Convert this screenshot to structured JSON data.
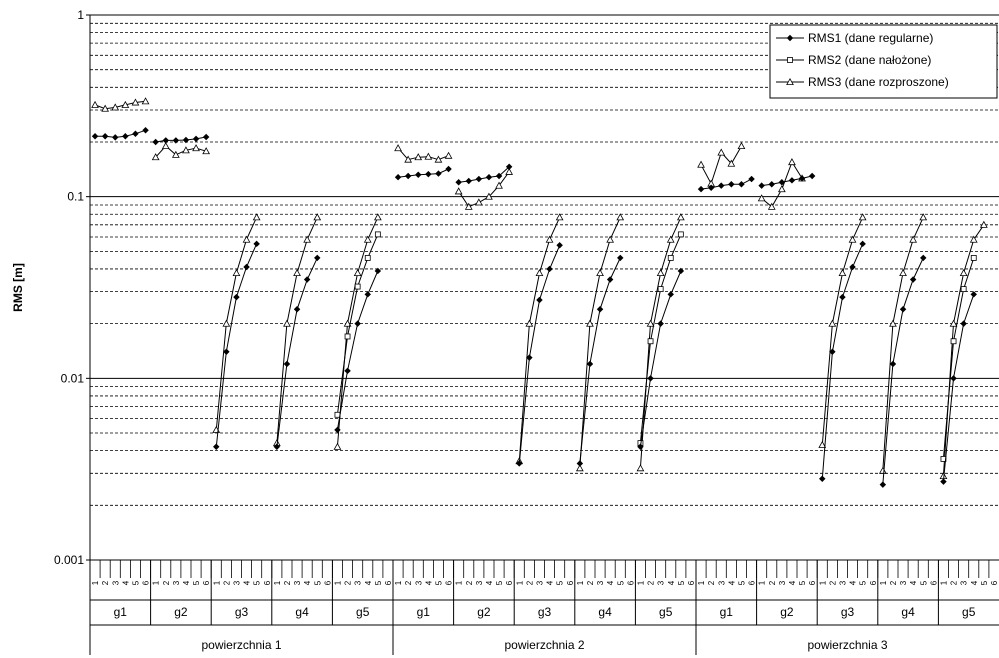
{
  "chart_data": {
    "type": "line",
    "title": "",
    "ylabel": "RMS [m]",
    "xlabel": "",
    "y_scale": "log",
    "ylim": [
      0.001,
      1
    ],
    "y_tick_labels": [
      "0.001",
      "0.01",
      "0.1",
      "1"
    ],
    "grid": {
      "major": "solid",
      "minor": "dashed"
    },
    "legend_position": "top-right",
    "colors": {
      "line": "#000000",
      "grid_major": "#000000",
      "grid_minor": "#000000",
      "background": "#ffffff"
    },
    "groups": [
      {
        "label": "powierzchnia 1",
        "subgroups": [
          "g1",
          "g2",
          "g3",
          "g4",
          "g5"
        ]
      },
      {
        "label": "powierzchnia 2",
        "subgroups": [
          "g1",
          "g2",
          "g3",
          "g4",
          "g5"
        ]
      },
      {
        "label": "powierzchnia 3",
        "subgroups": [
          "g1",
          "g2",
          "g3",
          "g4",
          "g5"
        ]
      }
    ],
    "sub_categories": [
      "1",
      "2",
      "3",
      "4",
      "5",
      "6"
    ],
    "series": [
      {
        "name": "RMS1 (dane regularne)",
        "marker": "diamond-filled",
        "values": [
          [
            [
              0.215,
              0.215,
              0.212,
              0.215,
              0.222,
              0.232
            ],
            [
              0.2,
              0.204,
              0.204,
              0.205,
              0.208,
              0.213
            ],
            [
              0.0042,
              0.014,
              0.028,
              0.041,
              0.055,
              null
            ],
            [
              0.0042,
              0.012,
              0.024,
              0.035,
              0.046,
              null
            ],
            [
              0.0052,
              0.011,
              0.02,
              0.029,
              0.039,
              null
            ]
          ],
          [
            [
              0.128,
              0.13,
              0.132,
              0.133,
              0.134,
              0.142
            ],
            [
              0.12,
              0.122,
              0.125,
              0.128,
              0.13,
              0.146
            ],
            [
              0.0034,
              0.013,
              0.027,
              0.04,
              0.054,
              null
            ],
            [
              0.0034,
              0.012,
              0.024,
              0.035,
              0.046,
              null
            ],
            [
              0.0042,
              0.01,
              0.02,
              0.029,
              0.039,
              null
            ]
          ],
          [
            [
              0.11,
              0.112,
              0.115,
              0.117,
              0.117,
              0.125
            ],
            [
              0.115,
              0.117,
              0.12,
              0.123,
              0.126,
              0.13
            ],
            [
              0.0028,
              0.014,
              0.028,
              0.041,
              0.055,
              null
            ],
            [
              0.0026,
              0.012,
              0.024,
              0.035,
              0.046,
              null
            ],
            [
              0.0027,
              0.01,
              0.02,
              0.029,
              null,
              null
            ]
          ]
        ]
      },
      {
        "name": "RMS2 (dane nałożone)",
        "marker": "square-open",
        "values": [
          [
            [
              null,
              null,
              null,
              null,
              null,
              null
            ],
            [
              null,
              null,
              null,
              null,
              null,
              null
            ],
            [
              null,
              null,
              null,
              null,
              null,
              null
            ],
            [
              null,
              null,
              null,
              null,
              null,
              null
            ],
            [
              0.0063,
              0.017,
              0.032,
              0.046,
              0.062,
              null
            ]
          ],
          [
            [
              null,
              null,
              null,
              null,
              null,
              null
            ],
            [
              null,
              null,
              null,
              null,
              null,
              null
            ],
            [
              null,
              null,
              null,
              null,
              null,
              null
            ],
            [
              null,
              null,
              null,
              null,
              null,
              null
            ],
            [
              0.0044,
              0.016,
              0.031,
              0.046,
              0.062,
              null
            ]
          ],
          [
            [
              null,
              null,
              null,
              null,
              null,
              null
            ],
            [
              null,
              null,
              null,
              null,
              null,
              null
            ],
            [
              null,
              null,
              null,
              null,
              null,
              null
            ],
            [
              null,
              null,
              null,
              null,
              null,
              null
            ],
            [
              0.0036,
              0.016,
              0.031,
              0.046,
              null,
              null
            ]
          ]
        ]
      },
      {
        "name": "RMS3 (dane rozproszone)",
        "marker": "triangle-open",
        "values": [
          [
            [
              0.32,
              0.305,
              0.31,
              0.32,
              0.33,
              0.335
            ],
            [
              0.165,
              0.19,
              0.17,
              0.18,
              0.185,
              0.178
            ],
            [
              0.0052,
              0.02,
              0.038,
              0.058,
              0.077,
              null
            ],
            [
              0.0044,
              0.02,
              0.038,
              0.058,
              0.077,
              null
            ],
            [
              0.0042,
              0.02,
              0.038,
              0.058,
              0.077,
              null
            ]
          ],
          [
            [
              0.185,
              0.16,
              0.165,
              0.166,
              0.16,
              0.168
            ],
            [
              0.107,
              0.088,
              0.093,
              0.1,
              0.115,
              0.137
            ],
            [
              0.0035,
              0.02,
              0.038,
              0.058,
              0.077,
              null
            ],
            [
              0.0032,
              0.02,
              0.038,
              0.058,
              0.077,
              null
            ],
            [
              0.0032,
              0.02,
              0.038,
              0.058,
              0.077,
              null
            ]
          ],
          [
            [
              0.15,
              0.118,
              0.175,
              0.152,
              0.19,
              null
            ],
            [
              0.098,
              0.088,
              0.11,
              0.155,
              0.126,
              null
            ],
            [
              0.0043,
              0.02,
              0.038,
              0.058,
              0.077,
              null
            ],
            [
              0.0031,
              0.02,
              0.038,
              0.058,
              0.077,
              null
            ],
            [
              0.0029,
              0.02,
              0.038,
              0.058,
              0.07,
              null
            ]
          ]
        ]
      }
    ]
  }
}
